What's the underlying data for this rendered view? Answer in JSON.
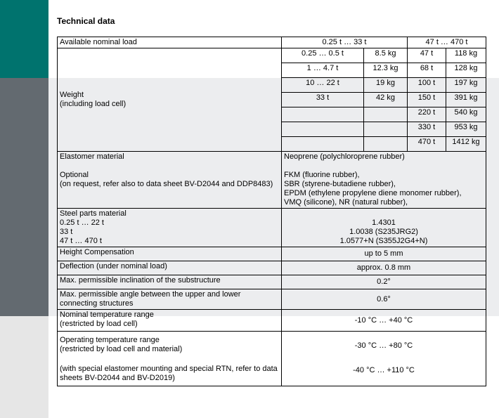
{
  "title": "Technical data",
  "nominal_load": {
    "label": "Available nominal load",
    "range_a": "0.25 t … 33 t",
    "range_b": "47 t … 470 t"
  },
  "weight": {
    "label": "Weight",
    "sublabel": "(including load cell)",
    "rows": [
      {
        "a_load": "0.25 … 0.5 t",
        "a_kg": "8.5 kg",
        "b_load": "47 t",
        "b_kg": "118 kg"
      },
      {
        "a_load": "1 … 4.7 t",
        "a_kg": "12.3 kg",
        "b_load": "68 t",
        "b_kg": "128 kg"
      },
      {
        "a_load": "10 … 22 t",
        "a_kg": "19 kg",
        "b_load": "100 t",
        "b_kg": "197 kg"
      },
      {
        "a_load": "33 t",
        "a_kg": "42 kg",
        "b_load": "150 t",
        "b_kg": "391 kg"
      },
      {
        "a_load": "",
        "a_kg": "",
        "b_load": "220 t",
        "b_kg": "540 kg"
      },
      {
        "a_load": "",
        "a_kg": "",
        "b_load": "330 t",
        "b_kg": "953 kg"
      },
      {
        "a_load": "",
        "a_kg": "",
        "b_load": "470 t",
        "b_kg": "1412 kg"
      }
    ]
  },
  "elastomer": {
    "label": "Elastomer material",
    "value": "Neoprene (polychloroprene rubber)",
    "optional_label": "Optional",
    "optional_note": "(on request, refer also to data sheet BV-D2044 and DDP8483)",
    "optional_values": [
      "FKM (fluorine rubber),",
      "SBR (styrene-butadiene rubber),",
      "EPDM (ethylene propylene diene monomer rubber),",
      "VMQ (silicone), NR (natural rubber),"
    ]
  },
  "steel": {
    "label": "Steel parts material",
    "rows": [
      {
        "range": "0.25 t … 22 t",
        "value": "1.4301"
      },
      {
        "range": "33 t",
        "value": "1.0038 (S235JRG2)"
      },
      {
        "range": "47 t … 470 t",
        "value": "1.0577+N (S355J2G4+N)"
      }
    ]
  },
  "simple_rows": [
    {
      "label": "Height Compensation",
      "value": "up to 5 mm"
    },
    {
      "label": "Deflection (under nominal load)",
      "value": "approx. 0.8 mm"
    },
    {
      "label": "Max. permissible inclination of the substructure",
      "value": "0.2°"
    },
    {
      "label": "Max. permissible angle between the upper and lower connecting structures",
      "value": "0.6°"
    }
  ],
  "nominal_temp": {
    "label": "Nominal temperature range",
    "note": "(restricted by load cell)",
    "value": "-10 °C … +40 °C"
  },
  "operating_temp": {
    "label": "Operating temperature range",
    "note": "(restricted by load cell and material)",
    "value": "-30 °C … +80 °C",
    "special_note": "(with special elastomer mounting and special RTN, refer to data sheets BV-D2044 and BV-D2019)",
    "special_value": "-40 °C … +110 °C"
  },
  "colors": {
    "teal": "#00736e",
    "gray": "#636a70",
    "light": "#ecedef"
  }
}
